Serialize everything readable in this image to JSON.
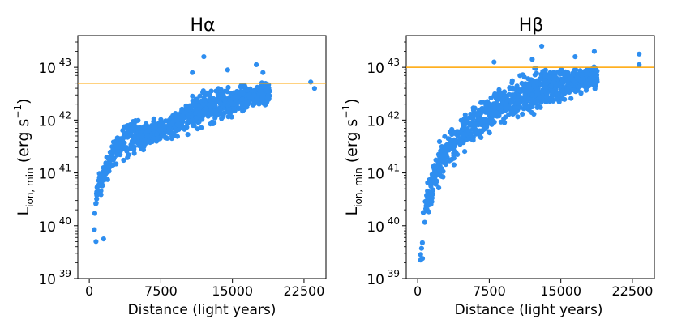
{
  "chart_data": [
    {
      "type": "scatter",
      "title": "Hα",
      "xlabel": "Distance (light years)",
      "ylabel_main": "L",
      "ylabel_sub": "ion, min",
      "ylabel_unit": "(erg s",
      "ylabel_exp": "−1",
      "ylabel_close": ")",
      "xlim": [
        -1200,
        24800
      ],
      "ylim_log10": [
        39,
        43.6
      ],
      "xticks": [
        0,
        7500,
        15000,
        22500
      ],
      "xtick_labels": [
        "0",
        "7500",
        "15000",
        "22500"
      ],
      "yticks_log10": [
        39,
        40,
        41,
        42,
        43
      ],
      "ytick_base": "10",
      "ytick_exps": [
        "39",
        "40",
        "41",
        "42",
        "43"
      ],
      "hline_log10": 42.7,
      "hline_color": "#ffa500",
      "point_color": "#2e8ef0",
      "envelope": {
        "x_min": 500,
        "x_max": 18900,
        "lower": [
          [
            500,
            39.7
          ],
          [
            1000,
            40.4
          ],
          [
            2000,
            40.75
          ],
          [
            3000,
            41.05
          ],
          [
            5000,
            41.3
          ],
          [
            8000,
            41.55
          ],
          [
            12000,
            41.8
          ],
          [
            16000,
            42.05
          ],
          [
            18900,
            42.3
          ]
        ],
        "upper": [
          [
            500,
            40.6
          ],
          [
            1000,
            41.2
          ],
          [
            2000,
            41.45
          ],
          [
            3000,
            41.9
          ],
          [
            4000,
            42.25
          ],
          [
            6000,
            42.05
          ],
          [
            9000,
            42.25
          ],
          [
            12000,
            42.7
          ],
          [
            16000,
            42.75
          ],
          [
            18900,
            42.75
          ]
        ]
      },
      "outliers": [
        [
          23200,
          42.72
        ],
        [
          23600,
          42.6
        ],
        [
          12000,
          43.2
        ],
        [
          17500,
          43.05
        ],
        [
          10800,
          42.9
        ],
        [
          14500,
          42.95
        ],
        [
          18200,
          42.9
        ],
        [
          700,
          39.7
        ],
        [
          1500,
          39.75
        ]
      ],
      "n_points": 1000,
      "seed": 7
    },
    {
      "type": "scatter",
      "title": "Hβ",
      "xlabel": "Distance (light years)",
      "ylabel_main": "L",
      "ylabel_sub": "ion, min",
      "ylabel_unit": "(erg s",
      "ylabel_exp": "−1",
      "ylabel_close": ")",
      "xlim": [
        -1200,
        24800
      ],
      "ylim_log10": [
        39,
        43.6
      ],
      "xticks": [
        0,
        7500,
        15000,
        22500
      ],
      "xtick_labels": [
        "0",
        "7500",
        "15000",
        "22500"
      ],
      "yticks_log10": [
        39,
        40,
        41,
        42,
        43
      ],
      "ytick_base": "10",
      "ytick_exps": [
        "39",
        "40",
        "41",
        "42",
        "43"
      ],
      "hline_log10": 43.0,
      "hline_color": "#ffa500",
      "point_color": "#2e8ef0",
      "envelope": {
        "x_min": 300,
        "x_max": 18800,
        "lower": [
          [
            300,
            39.3
          ],
          [
            1000,
            40.05
          ],
          [
            2000,
            40.6
          ],
          [
            3000,
            40.95
          ],
          [
            5000,
            41.3
          ],
          [
            8000,
            41.75
          ],
          [
            12000,
            42.05
          ],
          [
            16000,
            42.35
          ],
          [
            18800,
            42.55
          ]
        ],
        "upper": [
          [
            300,
            39.9
          ],
          [
            1000,
            40.9
          ],
          [
            2000,
            41.5
          ],
          [
            3000,
            41.9
          ],
          [
            5000,
            42.25
          ],
          [
            8000,
            42.65
          ],
          [
            12000,
            43.05
          ],
          [
            16000,
            43.05
          ],
          [
            18800,
            43.1
          ]
        ]
      },
      "outliers": [
        [
          23200,
          43.25
        ],
        [
          23200,
          43.05
        ],
        [
          13000,
          43.4
        ],
        [
          12000,
          43.15
        ],
        [
          8000,
          43.1
        ],
        [
          18500,
          43.3
        ],
        [
          16500,
          43.2
        ],
        [
          300,
          39.35
        ],
        [
          500,
          39.38
        ]
      ],
      "n_points": 1000,
      "seed": 11
    }
  ]
}
